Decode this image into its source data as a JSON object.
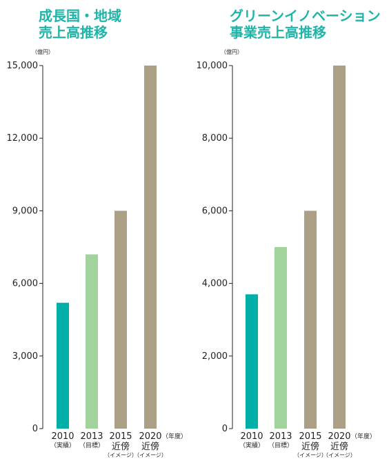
{
  "colors": {
    "title": "#1eb4a8",
    "axis": "#231f20",
    "actual": "#00afa8",
    "target": "#a3d39c",
    "image": "#aba085"
  },
  "chart_data": [
    {
      "type": "bar",
      "title_lines": [
        "成長国・地域",
        "売上高推移"
      ],
      "unit": "（億円）",
      "x_unit": "（年度）",
      "ylim": [
        0,
        15000
      ],
      "ticks": [
        0,
        3000,
        6000,
        9000,
        12000,
        15000
      ],
      "tick_labels": [
        "0",
        "3,000",
        "6,000",
        "9,000",
        "12,000",
        "15,000"
      ],
      "grid": false,
      "categories": [
        {
          "year": "2010",
          "sub": "（実績）",
          "sub2": "",
          "value": 5200,
          "kind": "actual"
        },
        {
          "year": "2013",
          "sub": "（目標）",
          "sub2": "",
          "value": 7200,
          "kind": "target"
        },
        {
          "year": "2015",
          "sub": "近傍",
          "sub2": "（イメージ）",
          "value": 9000,
          "kind": "image"
        },
        {
          "year": "2020",
          "sub": "近傍",
          "sub2": "（イメージ）",
          "value": 15000,
          "kind": "image"
        }
      ]
    },
    {
      "type": "bar",
      "title_lines": [
        "グリーンイノベーション",
        "事業売上高推移"
      ],
      "unit": "（億円）",
      "x_unit": "（年度）",
      "ylim": [
        0,
        10000
      ],
      "ticks": [
        0,
        2000,
        4000,
        6000,
        8000,
        10000
      ],
      "tick_labels": [
        "0",
        "2,000",
        "4,000",
        "6,000",
        "8,000",
        "10,000"
      ],
      "grid": false,
      "categories": [
        {
          "year": "2010",
          "sub": "（実績）",
          "sub2": "",
          "value": 3700,
          "kind": "actual"
        },
        {
          "year": "2013",
          "sub": "（目標）",
          "sub2": "",
          "value": 5000,
          "kind": "target"
        },
        {
          "year": "2015",
          "sub": "近傍",
          "sub2": "（イメージ）",
          "value": 6000,
          "kind": "image"
        },
        {
          "year": "2020",
          "sub": "近傍",
          "sub2": "（イメージ）",
          "value": 10000,
          "kind": "image"
        }
      ]
    }
  ]
}
